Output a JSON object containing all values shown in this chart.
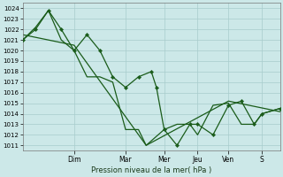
{
  "xlabel": "Pression niveau de la mer( hPa )",
  "ylim": [
    1010.5,
    1024.5
  ],
  "yticks": [
    1011,
    1012,
    1013,
    1014,
    1015,
    1016,
    1017,
    1018,
    1019,
    1020,
    1021,
    1022,
    1023,
    1024
  ],
  "xlim": [
    0,
    100
  ],
  "day_labels": [
    "Dim",
    "Mar",
    "Mer",
    "Jeu",
    "Ven",
    "S"
  ],
  "day_positions": [
    20,
    40,
    55,
    68,
    80,
    93
  ],
  "background_color": "#cce8e8",
  "grid_color": "#a8cccc",
  "line_color": "#1a5c1a",
  "line1_x": [
    0,
    5,
    10,
    15,
    20,
    25,
    30,
    35,
    40,
    45,
    50,
    52,
    55,
    60,
    65,
    68,
    74,
    80,
    85,
    90,
    93,
    100
  ],
  "line1_y": [
    1021,
    1022,
    1023.8,
    1022,
    1020,
    1021.5,
    1020,
    1017.5,
    1016.5,
    1017.5,
    1018,
    1016.5,
    1012.5,
    1011,
    1013,
    1013,
    1012,
    1014.8,
    1015.2,
    1013,
    1014,
    1014.5
  ],
  "line2_x": [
    0,
    5,
    10,
    15,
    20,
    25,
    30,
    35,
    40,
    45,
    48,
    55,
    60,
    65,
    68,
    74,
    80,
    85,
    90,
    93,
    100
  ],
  "line2_y": [
    1021,
    1022.2,
    1023.8,
    1021,
    1020,
    1017.5,
    1017.5,
    1017,
    1012.5,
    1012.5,
    1011,
    1012.5,
    1013,
    1013,
    1012,
    1014.8,
    1015,
    1013,
    1013,
    1014,
    1014.5
  ],
  "line3_x": [
    0,
    20,
    48,
    80,
    100
  ],
  "line3_y": [
    1021.5,
    1020.5,
    1011,
    1015.2,
    1014.2
  ]
}
